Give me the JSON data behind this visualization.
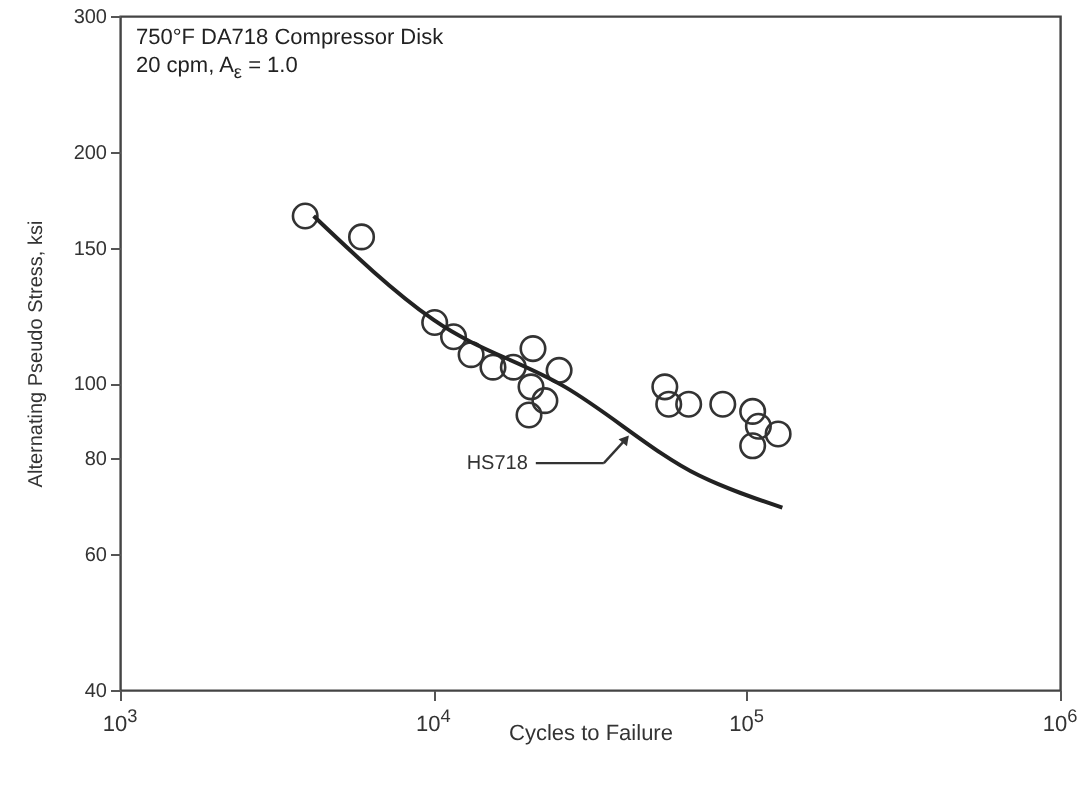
{
  "chart_data": {
    "type": "scatter",
    "title": "750°F DA718 Compressor Disk",
    "subtitle": "20 cpm, A$_{ε}$ = 1.0",
    "xlabel": "Cycles to Failure",
    "ylabel": "Alternating Pseudo Stress, ksi",
    "log": "xy",
    "grid": false,
    "xlim": [
      1000,
      1000000
    ],
    "ylim": [
      40,
      300
    ],
    "xticks": [
      {
        "value": 1000,
        "label": "10$^{3}$"
      },
      {
        "value": 10000,
        "label": "10$^{4}$"
      },
      {
        "value": 100000,
        "label": "10$^{5}$"
      },
      {
        "value": 1000000,
        "label": "10$^{6}$"
      }
    ],
    "yticks": [
      40,
      60,
      80,
      100,
      150,
      200,
      300
    ],
    "series": [
      {
        "type": "scatter",
        "marker": "circle",
        "color": "#333333",
        "x": [
          3900,
          5900,
          10100,
          11600,
          13200,
          15500,
          18000,
          20800,
          25200,
          20500,
          22700,
          20200,
          54800,
          56400,
          65300,
          83900,
          104500,
          109000,
          104500,
          126000
        ],
        "values": [
          165,
          155,
          120,
          115,
          109,
          105,
          105,
          111,
          104,
          99,
          95,
          91,
          99,
          94,
          94,
          94,
          92,
          88,
          83,
          86
        ]
      },
      {
        "type": "line",
        "color": "#222222",
        "x": [
          4150,
          10000,
          26300,
          70300,
          130000
        ],
        "values": [
          165,
          121,
          99,
          76,
          69
        ]
      }
    ],
    "annotations": [
      "HS718"
    ]
  }
}
